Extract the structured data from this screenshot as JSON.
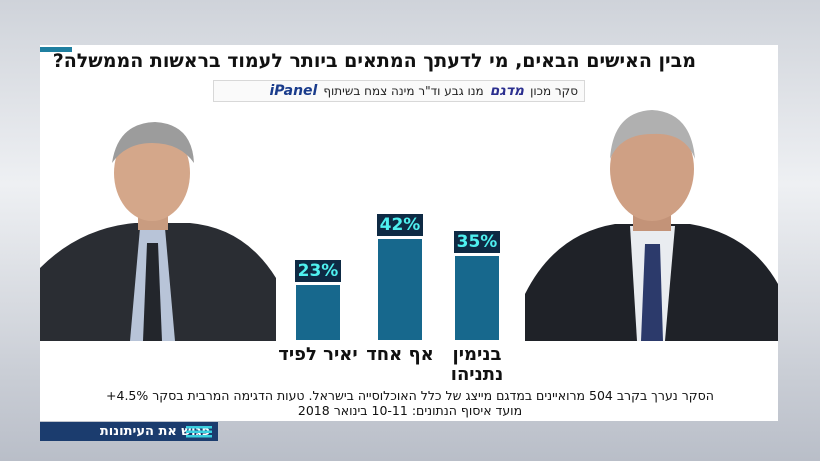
{
  "chart_data": {
    "type": "bar",
    "title": "מבין האישים הבאים, מי לדעתך המתאים ביותר לעמוד בראשות הממשלה?",
    "source": [
      "סקר מכון",
      "מדגם",
      "מנו גבע וד\"ר מינה צמח בשיתוף",
      "iPanel"
    ],
    "categories": [
      "יאיר לפיד",
      "אף אחד",
      "בנימין נתניהו"
    ],
    "values": [
      23,
      42,
      35
    ],
    "value_labels": [
      "23%",
      "42%",
      "35%"
    ],
    "color": "#17688d",
    "notes": [
      "הסקר נערך בקרב 504 מרואיינים במדגם מייצג של כלל האוכלוסייה בישראל. טעות הדגימה המרבית בסקר 4.5%+",
      "מועד איסוף הנתונים: 10-11 בינואר 2018"
    ]
  },
  "program": "פגוש את העיתונות"
}
